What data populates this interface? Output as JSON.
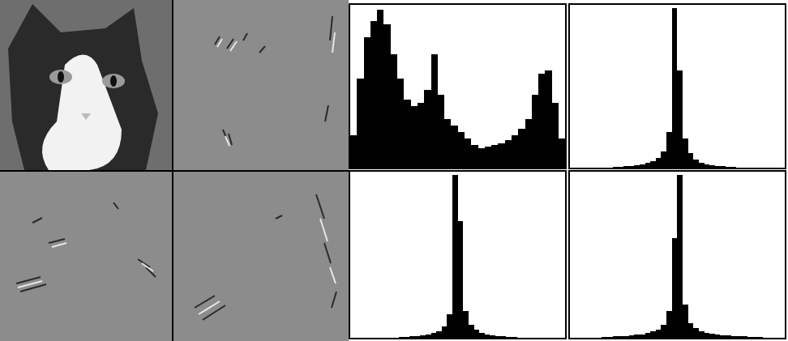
{
  "chart_data": [
    {
      "type": "histogram",
      "color": "#000000",
      "tick_labels": false,
      "grid": false,
      "bins": [
        0,
        8,
        16,
        24,
        32,
        40,
        48,
        56,
        64,
        72,
        80,
        88,
        96,
        104,
        112,
        120,
        128,
        136,
        144,
        152,
        160,
        168,
        176,
        184,
        192,
        200,
        208,
        216,
        224,
        232,
        240,
        248,
        256
      ],
      "values": [
        20,
        55,
        80,
        90,
        97,
        88,
        70,
        55,
        42,
        38,
        40,
        48,
        70,
        45,
        30,
        26,
        22,
        18,
        14,
        12,
        13,
        14,
        15,
        17,
        20,
        24,
        30,
        45,
        58,
        60,
        40,
        18
      ],
      "xlim": [
        0,
        256
      ],
      "ylim": [
        0,
        100
      ],
      "xticks": [],
      "yticks": []
    },
    {
      "type": "histogram",
      "color": "#000000",
      "tick_labels": false,
      "grid": false,
      "bins": [
        -100,
        -95,
        -90,
        -85,
        -80,
        -75,
        -70,
        -65,
        -60,
        -55,
        -50,
        -45,
        -40,
        -35,
        -30,
        -25,
        -20,
        -15,
        -10,
        -5,
        0,
        5,
        10,
        15,
        20,
        25,
        30,
        35,
        40,
        45,
        50,
        55,
        60,
        65,
        70,
        75,
        80,
        85,
        90,
        95,
        100
      ],
      "values": [
        0,
        0,
        0,
        0,
        0,
        0,
        0,
        0,
        0.5,
        0.5,
        1,
        1,
        1.5,
        2,
        3,
        4,
        6,
        10,
        22,
        98,
        60,
        18,
        9,
        5,
        3,
        2,
        1.5,
        1,
        1,
        0.5,
        0.5,
        0,
        0,
        0,
        0,
        0,
        0,
        0,
        0,
        0
      ],
      "xlim": [
        -100,
        100
      ],
      "ylim": [
        0,
        100
      ],
      "xticks": [],
      "yticks": []
    },
    {
      "type": "histogram",
      "color": "#000000",
      "tick_labels": false,
      "grid": false,
      "bins": [
        -100,
        -95,
        -90,
        -85,
        -80,
        -75,
        -70,
        -65,
        -60,
        -55,
        -50,
        -45,
        -40,
        -35,
        -30,
        -25,
        -20,
        -15,
        -10,
        -5,
        0,
        5,
        10,
        15,
        20,
        25,
        30,
        35,
        40,
        45,
        50,
        55,
        60,
        65,
        70,
        75,
        80,
        85,
        90,
        95,
        100
      ],
      "values": [
        0,
        0,
        0,
        0,
        0,
        0,
        0,
        0,
        0,
        0.5,
        0.5,
        1,
        1,
        1.5,
        2,
        3,
        4,
        7,
        14,
        98,
        70,
        16,
        8,
        5,
        3,
        2,
        1.5,
        1,
        1,
        0.5,
        0.5,
        0,
        0,
        0,
        0,
        0,
        0,
        0,
        0,
        0
      ],
      "xlim": [
        -100,
        100
      ],
      "ylim": [
        0,
        100
      ],
      "xticks": [],
      "yticks": []
    },
    {
      "type": "histogram",
      "color": "#000000",
      "tick_labels": false,
      "grid": false,
      "bins": [
        -100,
        -95,
        -90,
        -85,
        -80,
        -75,
        -70,
        -65,
        -60,
        -55,
        -50,
        -45,
        -40,
        -35,
        -30,
        -25,
        -20,
        -15,
        -10,
        -5,
        0,
        5,
        10,
        15,
        20,
        25,
        30,
        35,
        40,
        45,
        50,
        55,
        60,
        65,
        70,
        75,
        80,
        85,
        90,
        95,
        100
      ],
      "values": [
        0,
        0,
        0,
        0,
        0,
        0,
        0.5,
        0.5,
        1,
        1,
        1,
        1.5,
        2,
        2,
        3,
        4,
        5,
        8,
        16,
        60,
        98,
        20,
        9,
        6,
        4,
        3,
        2.5,
        2,
        1.5,
        1.5,
        1,
        1,
        1,
        0.5,
        0.5,
        0.5,
        0,
        0,
        0,
        0
      ],
      "xlim": [
        -100,
        100
      ],
      "ylim": [
        0,
        100
      ],
      "xticks": [],
      "yticks": []
    }
  ]
}
